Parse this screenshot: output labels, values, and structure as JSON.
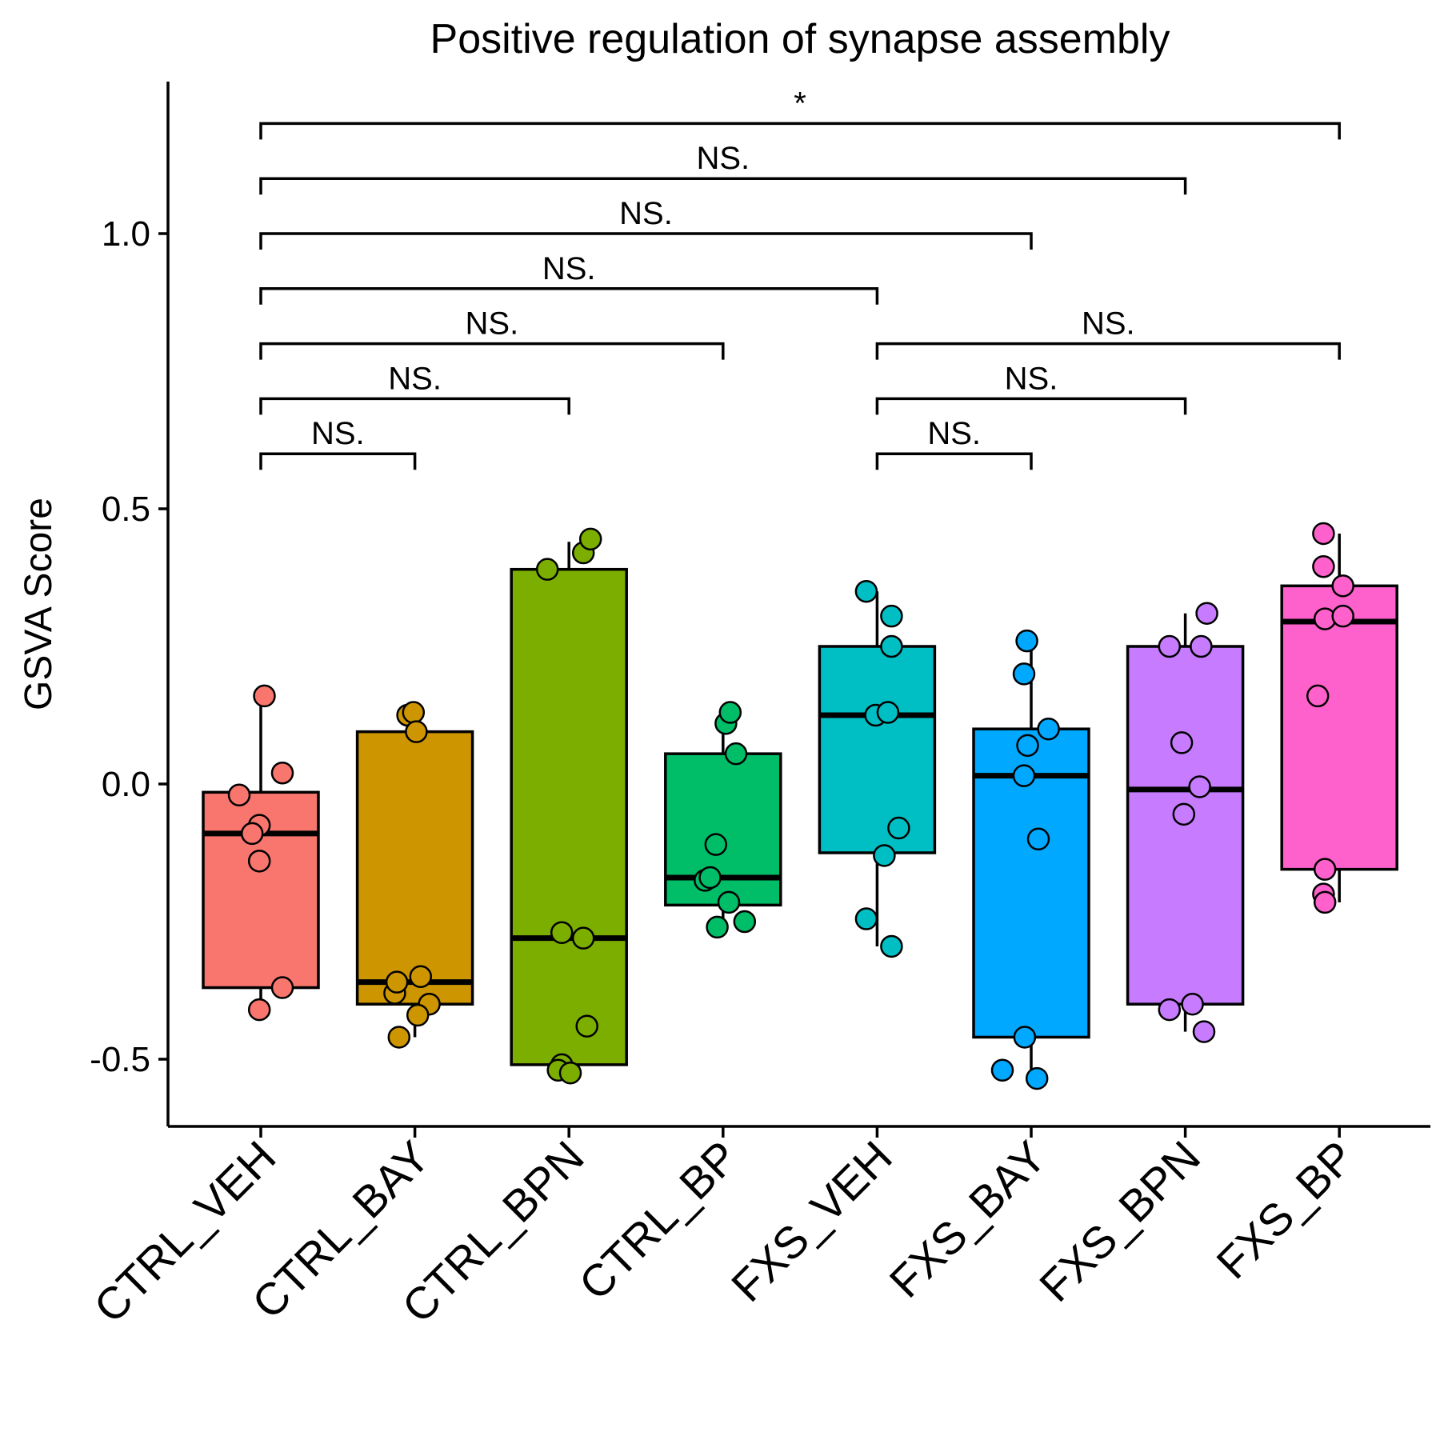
{
  "chart_data": {
    "type": "box",
    "title": "Positive regulation of synapse assembly",
    "xlabel": "",
    "ylabel": "GSVA Score",
    "ylim": [
      -0.62,
      1.28
    ],
    "yticks": [
      -0.5,
      0.0,
      0.5,
      1.0
    ],
    "ytick_labels": [
      "-0.5",
      "0.0",
      "0.5",
      "1.0"
    ],
    "grid": false,
    "legend": "none",
    "categories": [
      "CTRL_VEH",
      "CTRL_BAY",
      "CTRL_BPN",
      "CTRL_BP",
      "FXS_VEH",
      "FXS_BAY",
      "FXS_BPN",
      "FXS_BP"
    ],
    "colors": [
      "#F8766D",
      "#CD9600",
      "#7CAE00",
      "#00BE67",
      "#00BFC4",
      "#00A9FF",
      "#C77CFF",
      "#FF61CC"
    ],
    "boxes": [
      {
        "q1": -0.37,
        "median": -0.09,
        "q3": -0.015,
        "whisker_low": -0.41,
        "whisker_high": 0.16
      },
      {
        "q1": -0.4,
        "median": -0.36,
        "q3": 0.095,
        "whisker_low": -0.46,
        "whisker_high": 0.13
      },
      {
        "q1": -0.51,
        "median": -0.28,
        "q3": 0.39,
        "whisker_low": -0.52,
        "whisker_high": 0.44
      },
      {
        "q1": -0.22,
        "median": -0.17,
        "q3": 0.055,
        "whisker_low": -0.26,
        "whisker_high": 0.13
      },
      {
        "q1": -0.125,
        "median": 0.125,
        "q3": 0.25,
        "whisker_low": -0.295,
        "whisker_high": 0.35
      },
      {
        "q1": -0.46,
        "median": 0.015,
        "q3": 0.1,
        "whisker_low": -0.535,
        "whisker_high": 0.26
      },
      {
        "q1": -0.4,
        "median": -0.01,
        "q3": 0.25,
        "whisker_low": -0.45,
        "whisker_high": 0.31
      },
      {
        "q1": -0.155,
        "median": 0.295,
        "q3": 0.36,
        "whisker_low": -0.215,
        "whisker_high": 0.455
      }
    ],
    "points": [
      [
        [
          0.05,
          0.16
        ],
        [
          0.3,
          0.02
        ],
        [
          -0.3,
          -0.02
        ],
        [
          -0.02,
          -0.075
        ],
        [
          -0.12,
          -0.09
        ],
        [
          -0.02,
          -0.14
        ],
        [
          0.3,
          -0.37
        ],
        [
          -0.02,
          -0.41
        ]
      ],
      [
        [
          -0.1,
          0.125
        ],
        [
          -0.02,
          0.13
        ],
        [
          0.02,
          0.095
        ],
        [
          -0.28,
          -0.38
        ],
        [
          -0.25,
          -0.36
        ],
        [
          0.08,
          -0.35
        ],
        [
          0.2,
          -0.4
        ],
        [
          0.04,
          -0.42
        ],
        [
          -0.22,
          -0.46
        ]
      ],
      [
        [
          -0.3,
          0.39
        ],
        [
          0.2,
          0.42
        ],
        [
          0.3,
          0.445
        ],
        [
          -0.1,
          -0.27
        ],
        [
          0.2,
          -0.28
        ],
        [
          0.25,
          -0.44
        ],
        [
          -0.1,
          -0.51
        ],
        [
          -0.15,
          -0.52
        ],
        [
          0.02,
          -0.525
        ]
      ],
      [
        [
          0.04,
          0.11
        ],
        [
          0.1,
          0.13
        ],
        [
          0.18,
          0.055
        ],
        [
          -0.1,
          -0.11
        ],
        [
          -0.25,
          -0.175
        ],
        [
          -0.18,
          -0.17
        ],
        [
          0.08,
          -0.215
        ],
        [
          -0.08,
          -0.26
        ],
        [
          0.3,
          -0.25
        ]
      ],
      [
        [
          -0.15,
          0.35
        ],
        [
          0.2,
          0.305
        ],
        [
          0.2,
          0.25
        ],
        [
          -0.02,
          0.125
        ],
        [
          0.15,
          0.13
        ],
        [
          0.3,
          -0.08
        ],
        [
          0.1,
          -0.13
        ],
        [
          -0.15,
          -0.245
        ],
        [
          0.2,
          -0.295
        ]
      ],
      [
        [
          -0.06,
          0.26
        ],
        [
          -0.1,
          0.2
        ],
        [
          0.24,
          0.1
        ],
        [
          -0.05,
          0.07
        ],
        [
          -0.1,
          0.015
        ],
        [
          0.1,
          -0.1
        ],
        [
          -0.09,
          -0.46
        ],
        [
          -0.4,
          -0.52
        ],
        [
          0.08,
          -0.535
        ]
      ],
      [
        [
          -0.22,
          0.25
        ],
        [
          0.22,
          0.25
        ],
        [
          0.3,
          0.31
        ],
        [
          -0.05,
          0.075
        ],
        [
          0.2,
          -0.005
        ],
        [
          -0.02,
          -0.055
        ],
        [
          -0.22,
          -0.41
        ],
        [
          0.1,
          -0.4
        ],
        [
          0.26,
          -0.45
        ]
      ],
      [
        [
          -0.22,
          0.455
        ],
        [
          -0.22,
          0.395
        ],
        [
          0.05,
          0.36
        ],
        [
          -0.2,
          0.3
        ],
        [
          0.05,
          0.305
        ],
        [
          -0.3,
          0.16
        ],
        [
          -0.2,
          -0.155
        ],
        [
          -0.22,
          -0.2
        ],
        [
          -0.2,
          -0.215
        ]
      ]
    ],
    "comparisons": [
      {
        "from": 0,
        "to": 1,
        "y": 0.6,
        "label": "NS."
      },
      {
        "from": 0,
        "to": 2,
        "y": 0.7,
        "label": "NS."
      },
      {
        "from": 0,
        "to": 3,
        "y": 0.8,
        "label": "NS."
      },
      {
        "from": 0,
        "to": 4,
        "y": 0.9,
        "label": "NS."
      },
      {
        "from": 0,
        "to": 5,
        "y": 1.0,
        "label": "NS."
      },
      {
        "from": 0,
        "to": 6,
        "y": 1.1,
        "label": "NS."
      },
      {
        "from": 0,
        "to": 7,
        "y": 1.2,
        "label": "*"
      },
      {
        "from": 4,
        "to": 5,
        "y": 0.6,
        "label": "NS."
      },
      {
        "from": 4,
        "to": 6,
        "y": 0.7,
        "label": "NS."
      },
      {
        "from": 4,
        "to": 7,
        "y": 0.8,
        "label": "NS."
      }
    ]
  }
}
